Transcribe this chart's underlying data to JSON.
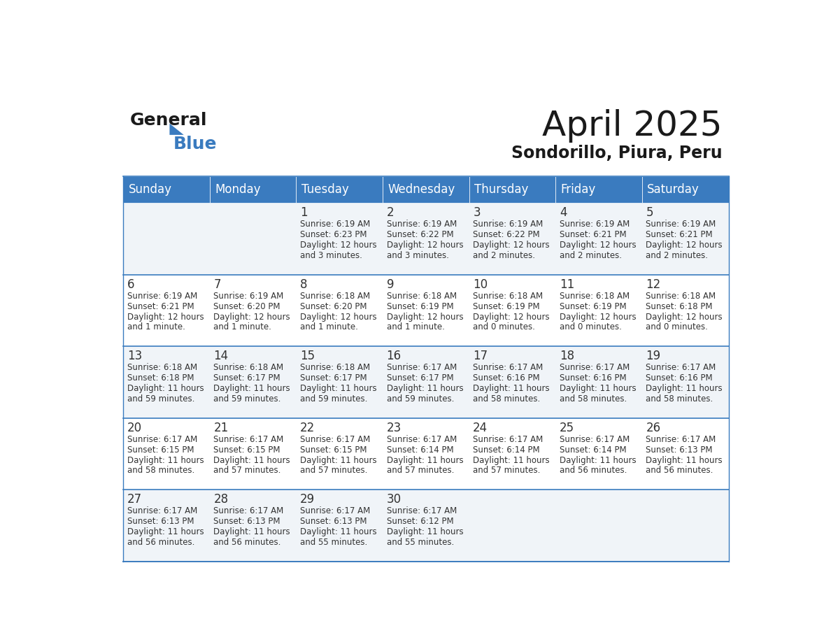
{
  "title": "April 2025",
  "subtitle": "Sondorillo, Piura, Peru",
  "header_bg_color": "#3a7bbf",
  "header_text_color": "#ffffff",
  "cell_bg_even": "#f0f4f8",
  "cell_bg_odd": "#ffffff",
  "border_color": "#3a7bbf",
  "title_color": "#1a1a1a",
  "subtitle_color": "#1a1a1a",
  "text_color": "#333333",
  "days_of_week": [
    "Sunday",
    "Monday",
    "Tuesday",
    "Wednesday",
    "Thursday",
    "Friday",
    "Saturday"
  ],
  "calendar": [
    [
      {
        "day": "",
        "sunrise": "",
        "sunset": "",
        "daylight": ""
      },
      {
        "day": "",
        "sunrise": "",
        "sunset": "",
        "daylight": ""
      },
      {
        "day": "1",
        "sunrise": "6:19 AM",
        "sunset": "6:23 PM",
        "daylight": "12 hours and 3 minutes."
      },
      {
        "day": "2",
        "sunrise": "6:19 AM",
        "sunset": "6:22 PM",
        "daylight": "12 hours and 3 minutes."
      },
      {
        "day": "3",
        "sunrise": "6:19 AM",
        "sunset": "6:22 PM",
        "daylight": "12 hours and 2 minutes."
      },
      {
        "day": "4",
        "sunrise": "6:19 AM",
        "sunset": "6:21 PM",
        "daylight": "12 hours and 2 minutes."
      },
      {
        "day": "5",
        "sunrise": "6:19 AM",
        "sunset": "6:21 PM",
        "daylight": "12 hours and 2 minutes."
      }
    ],
    [
      {
        "day": "6",
        "sunrise": "6:19 AM",
        "sunset": "6:21 PM",
        "daylight": "12 hours and 1 minute."
      },
      {
        "day": "7",
        "sunrise": "6:19 AM",
        "sunset": "6:20 PM",
        "daylight": "12 hours and 1 minute."
      },
      {
        "day": "8",
        "sunrise": "6:18 AM",
        "sunset": "6:20 PM",
        "daylight": "12 hours and 1 minute."
      },
      {
        "day": "9",
        "sunrise": "6:18 AM",
        "sunset": "6:19 PM",
        "daylight": "12 hours and 1 minute."
      },
      {
        "day": "10",
        "sunrise": "6:18 AM",
        "sunset": "6:19 PM",
        "daylight": "12 hours and 0 minutes."
      },
      {
        "day": "11",
        "sunrise": "6:18 AM",
        "sunset": "6:19 PM",
        "daylight": "12 hours and 0 minutes."
      },
      {
        "day": "12",
        "sunrise": "6:18 AM",
        "sunset": "6:18 PM",
        "daylight": "12 hours and 0 minutes."
      }
    ],
    [
      {
        "day": "13",
        "sunrise": "6:18 AM",
        "sunset": "6:18 PM",
        "daylight": "11 hours and 59 minutes."
      },
      {
        "day": "14",
        "sunrise": "6:18 AM",
        "sunset": "6:17 PM",
        "daylight": "11 hours and 59 minutes."
      },
      {
        "day": "15",
        "sunrise": "6:18 AM",
        "sunset": "6:17 PM",
        "daylight": "11 hours and 59 minutes."
      },
      {
        "day": "16",
        "sunrise": "6:17 AM",
        "sunset": "6:17 PM",
        "daylight": "11 hours and 59 minutes."
      },
      {
        "day": "17",
        "sunrise": "6:17 AM",
        "sunset": "6:16 PM",
        "daylight": "11 hours and 58 minutes."
      },
      {
        "day": "18",
        "sunrise": "6:17 AM",
        "sunset": "6:16 PM",
        "daylight": "11 hours and 58 minutes."
      },
      {
        "day": "19",
        "sunrise": "6:17 AM",
        "sunset": "6:16 PM",
        "daylight": "11 hours and 58 minutes."
      }
    ],
    [
      {
        "day": "20",
        "sunrise": "6:17 AM",
        "sunset": "6:15 PM",
        "daylight": "11 hours and 58 minutes."
      },
      {
        "day": "21",
        "sunrise": "6:17 AM",
        "sunset": "6:15 PM",
        "daylight": "11 hours and 57 minutes."
      },
      {
        "day": "22",
        "sunrise": "6:17 AM",
        "sunset": "6:15 PM",
        "daylight": "11 hours and 57 minutes."
      },
      {
        "day": "23",
        "sunrise": "6:17 AM",
        "sunset": "6:14 PM",
        "daylight": "11 hours and 57 minutes."
      },
      {
        "day": "24",
        "sunrise": "6:17 AM",
        "sunset": "6:14 PM",
        "daylight": "11 hours and 57 minutes."
      },
      {
        "day": "25",
        "sunrise": "6:17 AM",
        "sunset": "6:14 PM",
        "daylight": "11 hours and 56 minutes."
      },
      {
        "day": "26",
        "sunrise": "6:17 AM",
        "sunset": "6:13 PM",
        "daylight": "11 hours and 56 minutes."
      }
    ],
    [
      {
        "day": "27",
        "sunrise": "6:17 AM",
        "sunset": "6:13 PM",
        "daylight": "11 hours and 56 minutes."
      },
      {
        "day": "28",
        "sunrise": "6:17 AM",
        "sunset": "6:13 PM",
        "daylight": "11 hours and 56 minutes."
      },
      {
        "day": "29",
        "sunrise": "6:17 AM",
        "sunset": "6:13 PM",
        "daylight": "11 hours and 55 minutes."
      },
      {
        "day": "30",
        "sunrise": "6:17 AM",
        "sunset": "6:12 PM",
        "daylight": "11 hours and 55 minutes."
      },
      {
        "day": "",
        "sunrise": "",
        "sunset": "",
        "daylight": ""
      },
      {
        "day": "",
        "sunrise": "",
        "sunset": "",
        "daylight": ""
      },
      {
        "day": "",
        "sunrise": "",
        "sunset": "",
        "daylight": ""
      }
    ]
  ],
  "logo_text_general": "General",
  "logo_text_blue": "Blue",
  "logo_color_general": "#1a1a1a",
  "logo_color_blue": "#3a7bbf",
  "logo_triangle_color": "#3a7bbf"
}
